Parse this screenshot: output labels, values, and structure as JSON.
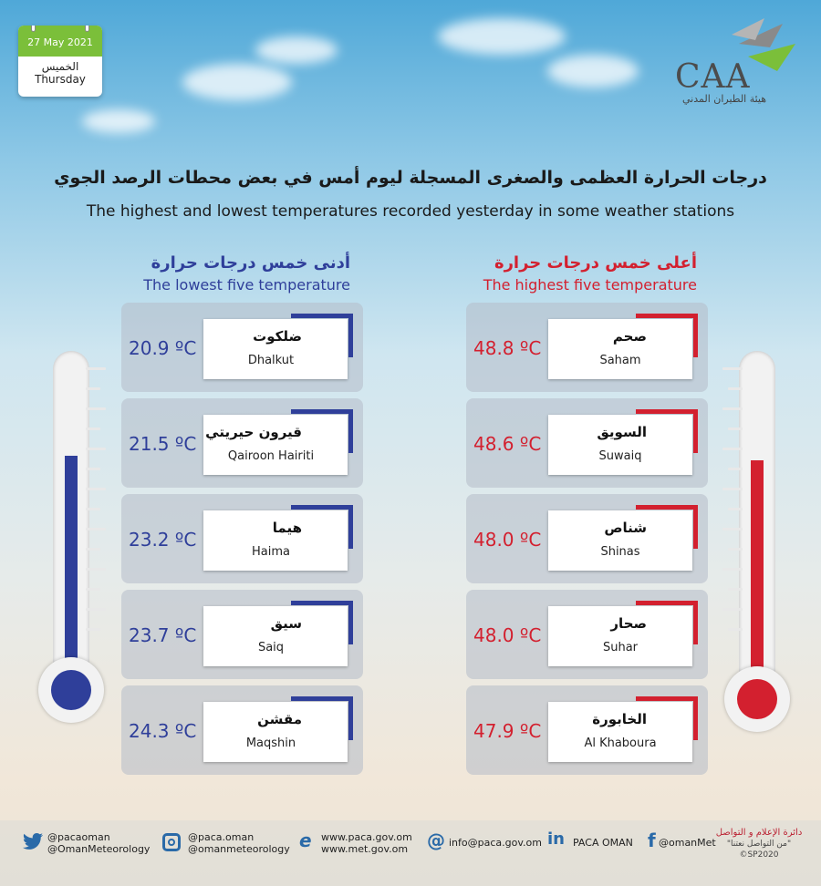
{
  "date": {
    "day_month_year": "27  May 2021",
    "day_ar": "الخميس",
    "day_en": "Thursday"
  },
  "logo": {
    "text": "CAA",
    "sub": "هيئة الطيران المدني"
  },
  "title": {
    "ar": "درجات الحرارة العظمى والصغرى المسجلة ليوم أمس في بعض محطات الرصد الجوي",
    "en": "The highest and lowest temperatures recorded yesterday in some weather stations"
  },
  "lowest": {
    "heading_ar": "أدنى خمس درجات حرارة",
    "heading_en": "The lowest five temperature",
    "accent": "#2f3f9a",
    "items": [
      {
        "ar": "ضلكوت",
        "en": "Dhalkut",
        "temp": "20.9 ºC"
      },
      {
        "ar": "قيرون حيريتي",
        "en": "Qairoon Hairiti",
        "temp": "21.5 ºC"
      },
      {
        "ar": "هيما",
        "en": "Haima",
        "temp": "23.2 ºC"
      },
      {
        "ar": "سيق",
        "en": "Saiq",
        "temp": "23.7 ºC"
      },
      {
        "ar": "مقشن",
        "en": "Maqshin",
        "temp": "24.3 ºC"
      }
    ]
  },
  "highest": {
    "heading_ar": "أعلى خمس درجات حرارة",
    "heading_en": "The highest five temperature",
    "accent": "#d3202f",
    "items": [
      {
        "ar": "صحم",
        "en": "Saham",
        "temp": "48.8 ºC"
      },
      {
        "ar": "السويق",
        "en": "Suwaiq",
        "temp": "48.6 ºC"
      },
      {
        "ar": "شناص",
        "en": "Shinas",
        "temp": "48.0 ºC"
      },
      {
        "ar": "صحار",
        "en": "Suhar",
        "temp": "48.0 ºC"
      },
      {
        "ar": "الخابورة",
        "en": "Al Khaboura",
        "temp": "47.9 ºC"
      }
    ]
  },
  "footer": {
    "twitter": [
      "@pacaoman",
      "@OmanMeteorology"
    ],
    "instagram": [
      "@paca.oman",
      "@omanmeteorology"
    ],
    "web": [
      "www.paca.gov.om",
      "www.met.gov.om"
    ],
    "email": "info@paca.gov.om",
    "linkedin": "PACA OMAN",
    "facebook": "@omanMet",
    "media_ar": "دائرة الإعلام و التواصل",
    "media_slogan": "\"من التواصل نعتنا\"",
    "media_code": "©SP2020"
  },
  "icons": [
    "twitter-icon",
    "instagram-icon",
    "web-icon",
    "email-icon",
    "linkedin-icon",
    "facebook-icon"
  ]
}
